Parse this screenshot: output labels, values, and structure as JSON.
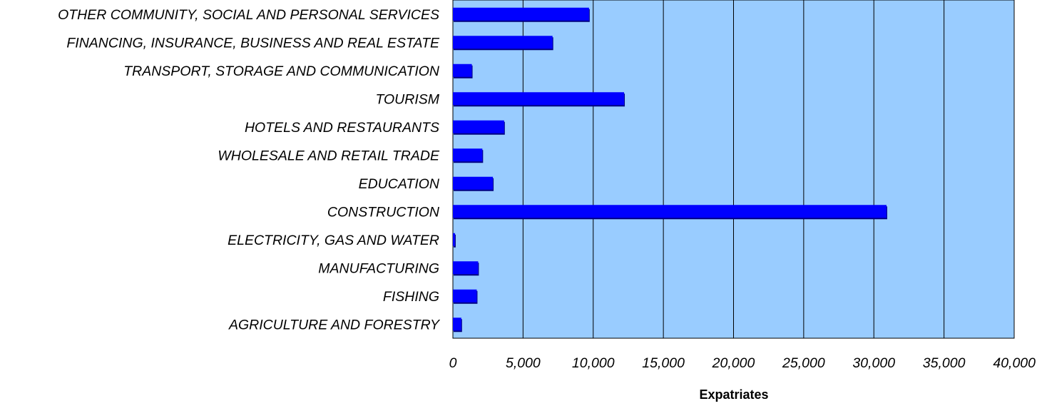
{
  "chart_data": {
    "type": "bar",
    "orientation": "horizontal",
    "categories": [
      "OTHER COMMUNITY, SOCIAL AND PERSONAL SERVICES",
      "FINANCING, INSURANCE, BUSINESS AND REAL ESTATE",
      "TRANSPORT, STORAGE AND COMMUNICATION",
      "TOURISM",
      "HOTELS AND RESTAURANTS",
      "WHOLESALE AND RETAIL TRADE",
      "EDUCATION",
      "CONSTRUCTION",
      "ELECTRICITY, GAS AND WATER",
      "MANUFACTURING",
      "FISHING",
      "AGRICULTURE AND FORESTRY"
    ],
    "values": [
      9700,
      7100,
      1350,
      12200,
      3650,
      2100,
      2850,
      30900,
      150,
      1800,
      1700,
      600
    ],
    "title": "",
    "xlabel": "Expatriates",
    "ylabel": "",
    "xlim": [
      0,
      40000
    ],
    "xticks": [
      0,
      5000,
      10000,
      15000,
      20000,
      25000,
      30000,
      35000,
      40000
    ],
    "xtick_labels": [
      "0",
      "5,000",
      "10,000",
      "15,000",
      "20,000",
      "25,000",
      "30,000",
      "35,000",
      "40,000"
    ],
    "grid": "vertical gridlines",
    "legend": "none",
    "colors": {
      "bar": "#0000ff",
      "bar_shadow": "#000080",
      "plot_background": "#99ccff",
      "grid": "#000000"
    }
  }
}
